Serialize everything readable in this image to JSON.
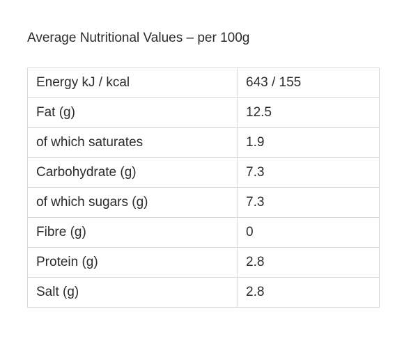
{
  "heading": "Average Nutritional Values – per 100g",
  "rows": [
    {
      "label": "Energy kJ / kcal",
      "value": "643 / 155"
    },
    {
      "label": "Fat (g)",
      "value": "12.5"
    },
    {
      "label": "of which saturates",
      "value": "1.9"
    },
    {
      "label": "Carbohydrate (g)",
      "value": "7.3"
    },
    {
      "label": "of which sugars (g)",
      "value": "7.3"
    },
    {
      "label": "Fibre (g)",
      "value": "0"
    },
    {
      "label": "Protein (g)",
      "value": "2.8"
    },
    {
      "label": "Salt (g)",
      "value": "2.8"
    }
  ]
}
